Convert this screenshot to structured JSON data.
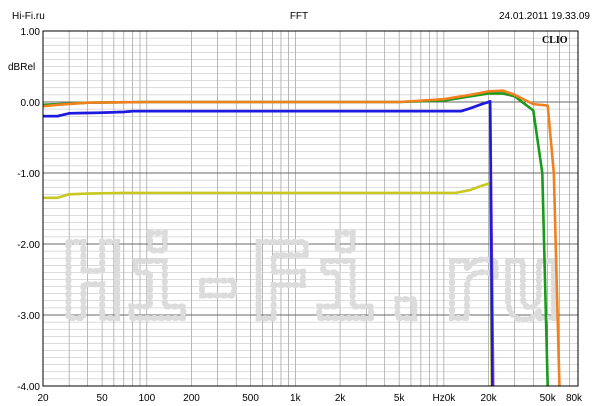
{
  "header": {
    "left": "Hi-Fi.ru",
    "center": "FFT",
    "right": "24.01.2011 19.33.09"
  },
  "badge": "CLIO",
  "watermark": "Hi-Fi.ru",
  "chart_data": {
    "type": "line",
    "title": "FFT",
    "ylabel": "dBRel",
    "xlabel": "Hz",
    "xscale": "log",
    "xlim": [
      20,
      80000
    ],
    "ylim": [
      -4.0,
      1.0
    ],
    "grid": true,
    "y_ticks": [
      {
        "v": 1.0,
        "label": "1.00"
      },
      {
        "v": 0.0,
        "label": "0.00"
      },
      {
        "v": -1.0,
        "label": "-1.00"
      },
      {
        "v": -2.0,
        "label": "-2.00"
      },
      {
        "v": -3.0,
        "label": "-3.00"
      },
      {
        "v": -4.0,
        "label": "-4.00"
      }
    ],
    "x_ticks": [
      {
        "v": 20,
        "label": "20"
      },
      {
        "v": 50,
        "label": "50"
      },
      {
        "v": 100,
        "label": "100"
      },
      {
        "v": 200,
        "label": "200"
      },
      {
        "v": 500,
        "label": "500"
      },
      {
        "v": 1000,
        "label": "1k"
      },
      {
        "v": 2000,
        "label": "2k"
      },
      {
        "v": 5000,
        "label": "5k"
      },
      {
        "v": 10000,
        "label": "Hz0k"
      },
      {
        "v": 20000,
        "label": "20k"
      },
      {
        "v": 50000,
        "label": "50k"
      },
      {
        "v": 80000,
        "label": "80k"
      }
    ],
    "series": [
      {
        "color": "#c8c820",
        "points": [
          [
            20,
            -1.35
          ],
          [
            25,
            -1.35
          ],
          [
            30,
            -1.3
          ],
          [
            40,
            -1.29
          ],
          [
            70,
            -1.28
          ],
          [
            200,
            -1.28
          ],
          [
            1000,
            -1.28
          ],
          [
            5000,
            -1.28
          ],
          [
            12000,
            -1.28
          ],
          [
            15000,
            -1.24
          ],
          [
            18000,
            -1.18
          ],
          [
            20000,
            -1.15
          ],
          [
            20500,
            -1.14
          ],
          [
            21000,
            -4.0
          ]
        ]
      },
      {
        "color": "#b050b0",
        "points": [
          [
            20,
            -0.2
          ],
          [
            25,
            -0.2
          ],
          [
            30,
            -0.16
          ],
          [
            50,
            -0.15
          ],
          [
            70,
            -0.14
          ],
          [
            80,
            -0.13
          ],
          [
            1000,
            -0.13
          ],
          [
            10000,
            -0.13
          ],
          [
            13000,
            -0.13
          ],
          [
            15000,
            -0.09
          ],
          [
            18000,
            -0.03
          ],
          [
            20000,
            0.0
          ],
          [
            20500,
            0.01
          ],
          [
            21500,
            -4.0
          ]
        ]
      },
      {
        "color": "#1a1ae0",
        "points": [
          [
            20,
            -0.2
          ],
          [
            25,
            -0.2
          ],
          [
            30,
            -0.16
          ],
          [
            50,
            -0.15
          ],
          [
            70,
            -0.14
          ],
          [
            80,
            -0.13
          ],
          [
            1000,
            -0.13
          ],
          [
            10000,
            -0.13
          ],
          [
            13000,
            -0.13
          ],
          [
            15000,
            -0.09
          ],
          [
            18000,
            -0.03
          ],
          [
            20000,
            0.0
          ],
          [
            20500,
            0.01
          ],
          [
            21200,
            -4.0
          ]
        ]
      },
      {
        "color": "#1a9a1a",
        "points": [
          [
            20,
            -0.04
          ],
          [
            25,
            -0.03
          ],
          [
            40,
            -0.01
          ],
          [
            100,
            0.0
          ],
          [
            1000,
            0.0
          ],
          [
            5000,
            0.0
          ],
          [
            10000,
            0.02
          ],
          [
            15000,
            0.08
          ],
          [
            20000,
            0.12
          ],
          [
            25000,
            0.12
          ],
          [
            30000,
            0.08
          ],
          [
            40000,
            -0.12
          ],
          [
            46000,
            -1.0
          ],
          [
            50000,
            -4.0
          ]
        ]
      },
      {
        "color": "#f08020",
        "points": [
          [
            20,
            -0.06
          ],
          [
            25,
            -0.04
          ],
          [
            40,
            -0.01
          ],
          [
            100,
            0.0
          ],
          [
            1000,
            0.0
          ],
          [
            5000,
            0.0
          ],
          [
            10000,
            0.04
          ],
          [
            15000,
            0.1
          ],
          [
            20000,
            0.15
          ],
          [
            25000,
            0.16
          ],
          [
            30000,
            0.1
          ],
          [
            40000,
            -0.03
          ],
          [
            50000,
            -0.05
          ],
          [
            55000,
            -1.0
          ],
          [
            60000,
            -4.0
          ]
        ]
      }
    ]
  }
}
